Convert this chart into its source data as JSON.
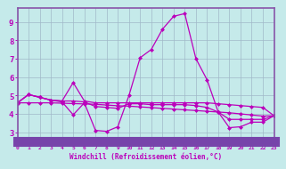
{
  "xlabel": "Windchill (Refroidissement éolien,°C)",
  "xlim": [
    0,
    23
  ],
  "ylim": [
    2.5,
    9.75
  ],
  "yticks": [
    3,
    4,
    5,
    6,
    7,
    8,
    9
  ],
  "xticks": [
    0,
    1,
    2,
    3,
    4,
    5,
    6,
    7,
    8,
    9,
    10,
    11,
    12,
    13,
    14,
    15,
    16,
    17,
    18,
    19,
    20,
    21,
    22,
    23
  ],
  "bg_color": "#c5eaea",
  "grid_color": "#a0b8c8",
  "line_color": "#bb00bb",
  "spine_color": "#8855aa",
  "series1_x": [
    0,
    1,
    2,
    3,
    4,
    5,
    6,
    7,
    8,
    9,
    10,
    11,
    12,
    13,
    14,
    15,
    16,
    17,
    18,
    19,
    20,
    21,
    22,
    23
  ],
  "series1_y": [
    4.6,
    5.05,
    4.9,
    4.75,
    4.7,
    5.7,
    4.7,
    4.6,
    4.6,
    4.6,
    4.6,
    4.6,
    4.6,
    4.6,
    4.6,
    4.6,
    4.6,
    4.6,
    4.55,
    4.5,
    4.45,
    4.4,
    4.35,
    3.9
  ],
  "series2_x": [
    0,
    1,
    2,
    3,
    4,
    5,
    6,
    7,
    8,
    9,
    10,
    11,
    12,
    13,
    14,
    15,
    16,
    17,
    18,
    19,
    20,
    21,
    22,
    23
  ],
  "series2_y": [
    4.6,
    5.05,
    4.9,
    4.75,
    4.65,
    3.95,
    4.6,
    3.1,
    3.05,
    3.3,
    5.0,
    7.05,
    7.5,
    8.6,
    9.3,
    9.45,
    7.0,
    5.85,
    4.1,
    3.25,
    3.3,
    3.55,
    3.55,
    3.9
  ],
  "series3_x": [
    0,
    1,
    2,
    3,
    4,
    5,
    6,
    7,
    8,
    9,
    10,
    11,
    12,
    13,
    14,
    15,
    16,
    17,
    18,
    19,
    20,
    21,
    22,
    23
  ],
  "series3_y": [
    4.6,
    5.05,
    4.9,
    4.75,
    4.7,
    4.7,
    4.65,
    4.4,
    4.35,
    4.3,
    4.55,
    4.55,
    4.5,
    4.5,
    4.5,
    4.5,
    4.45,
    4.35,
    4.1,
    3.7,
    3.7,
    3.7,
    3.7,
    3.9
  ],
  "series4_x": [
    0,
    1,
    2,
    3,
    4,
    5,
    6,
    7,
    8,
    9,
    10,
    11,
    12,
    13,
    14,
    15,
    16,
    17,
    18,
    19,
    20,
    21,
    22,
    23
  ],
  "series4_y": [
    4.6,
    4.6,
    4.6,
    4.6,
    4.58,
    4.56,
    4.54,
    4.52,
    4.48,
    4.44,
    4.42,
    4.38,
    4.34,
    4.3,
    4.26,
    4.22,
    4.18,
    4.14,
    4.1,
    4.06,
    4.0,
    3.94,
    3.88,
    3.9
  ]
}
